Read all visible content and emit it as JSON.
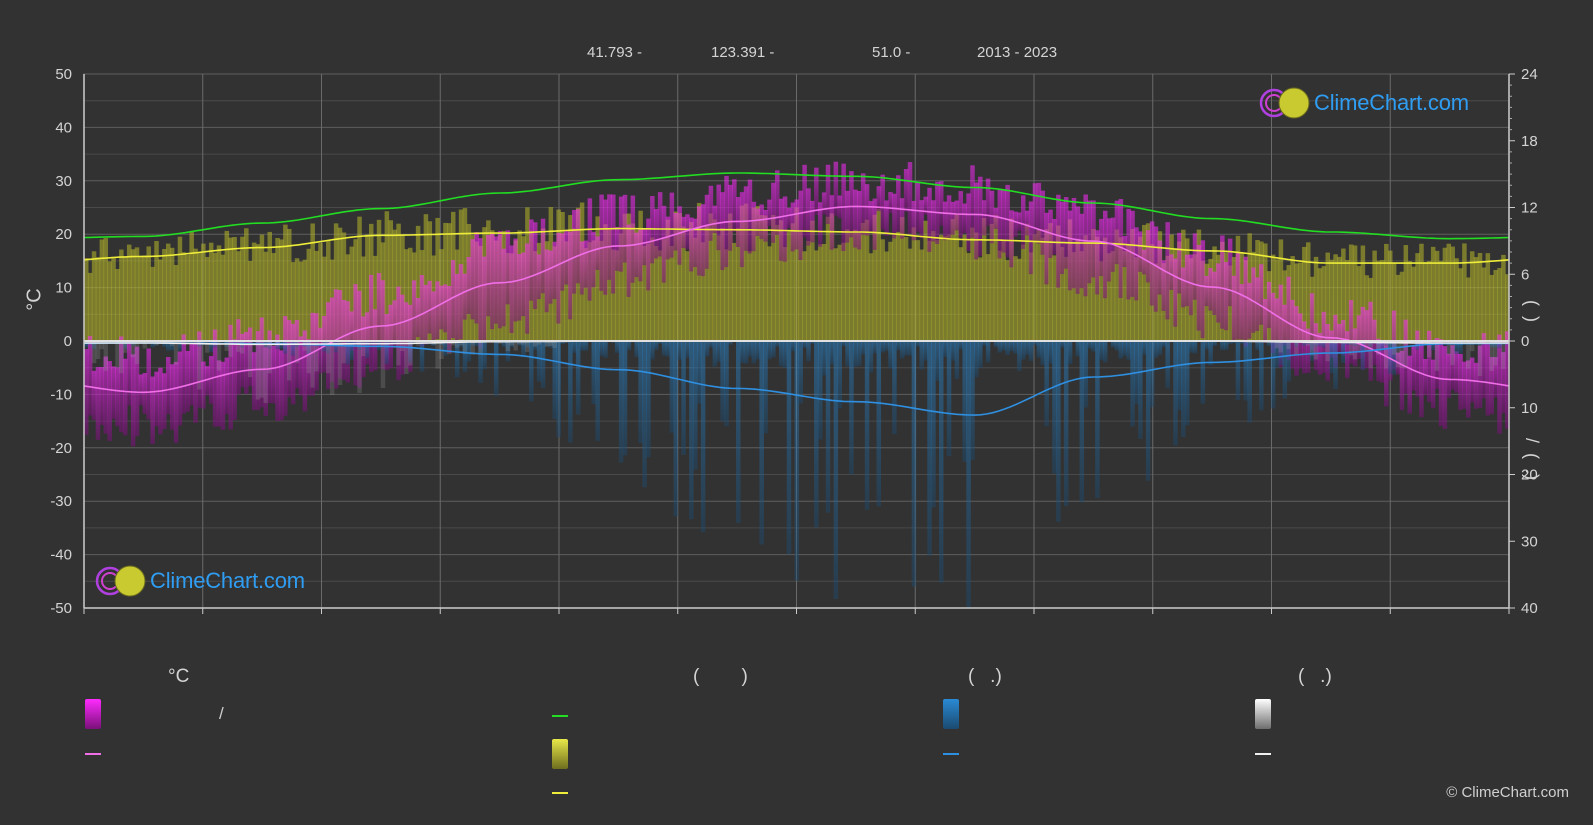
{
  "header": {
    "lat": "41.793 -",
    "lon": "123.391 -",
    "elev": "51.0 -",
    "years": "2013 - 2023"
  },
  "logo_text": "ClimeChart.com",
  "copyright": "© ClimeChart.com",
  "left_axis_label": "°C",
  "right_axis_label_upper": "(  )",
  "right_axis_label_lower": "/  (  .)",
  "legend": {
    "titles": [
      "°C",
      "(        )",
      "(   .)",
      "(   .)"
    ],
    "slash": "/"
  },
  "colors": {
    "background": "#323232",
    "temp_band": "#d41ed4",
    "temp_mean": "#f06ee8",
    "daylight": "#22dd22",
    "sunshine_band": "#b8b82a",
    "sunshine_mean": "#eded3a",
    "precip": "#2a8ad4",
    "precip_mean": "#2f8fe0",
    "snow": "#9a9a9a",
    "snow_mean": "#f0f0f0",
    "grid": "#5a5a5a",
    "zero_line": "#e0e0e0"
  },
  "chart_data": {
    "type": "line",
    "x": [
      "",
      "",
      "",
      "",
      "",
      "",
      "",
      "",
      "",
      "",
      "",
      ""
    ],
    "left_axis": {
      "ylim": [
        -50,
        50
      ],
      "ticks": [
        50,
        40,
        30,
        20,
        10,
        0,
        -10,
        -20,
        -30,
        -40,
        -50
      ],
      "label": "°C"
    },
    "right_axis_upper": {
      "range": [
        0,
        24
      ],
      "ticks": [
        24,
        18,
        12,
        6,
        0
      ]
    },
    "right_axis_lower": {
      "range": [
        0,
        40
      ],
      "ticks": [
        0,
        10,
        20,
        30,
        40
      ]
    },
    "series": [
      {
        "key": "daylight_hours",
        "axis": "right_upper",
        "values": [
          9.4,
          10.6,
          11.9,
          13.3,
          14.5,
          15.1,
          14.8,
          13.8,
          12.4,
          11.0,
          9.8,
          9.2
        ]
      },
      {
        "key": "sunshine_mean_hours",
        "axis": "right_upper",
        "values": [
          7.6,
          8.4,
          9.5,
          9.7,
          10.1,
          10.0,
          9.8,
          9.1,
          8.8,
          8.1,
          7.0,
          7.0
        ]
      },
      {
        "key": "temp_mean_c",
        "axis": "left",
        "values": [
          -9.6,
          -5.3,
          2.8,
          10.9,
          17.8,
          22.4,
          25.2,
          23.7,
          18.7,
          10.1,
          0.6,
          -7.2
        ]
      },
      {
        "key": "temp_max_c",
        "axis": "left",
        "values": [
          -3,
          1,
          9,
          18,
          24,
          28,
          30,
          29,
          24,
          16,
          5,
          -1
        ]
      },
      {
        "key": "temp_min_c",
        "axis": "left",
        "values": [
          -16,
          -12,
          -4,
          3,
          11,
          17,
          21,
          19,
          12,
          4,
          -5,
          -13
        ]
      },
      {
        "key": "precip_mean_mm",
        "axis": "right_lower",
        "values": [
          0.3,
          0.4,
          0.8,
          2.0,
          4.3,
          7.1,
          9.1,
          11.1,
          5.4,
          3.2,
          1.8,
          0.4
        ]
      },
      {
        "key": "snow_mean_mm",
        "axis": "right_lower",
        "values": [
          0.3,
          0.5,
          0.4,
          0.1,
          0,
          0,
          0,
          0,
          0,
          0,
          0.2,
          0.3
        ]
      }
    ]
  }
}
